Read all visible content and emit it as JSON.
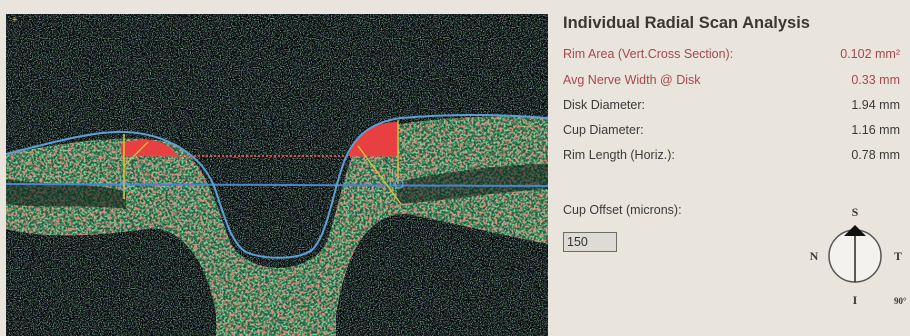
{
  "title": "Individual Radial Scan Analysis",
  "measurements": [
    {
      "label": "Rim  Area (Vert.Cross Section):",
      "value": "0.102 mm²",
      "highlight": true
    },
    {
      "label": "Avg Nerve Width @ Disk",
      "value": "0.33 mm",
      "highlight": true
    },
    {
      "label": "Disk Diameter:",
      "value": "1.94 mm",
      "highlight": false
    },
    {
      "label": "Cup Diameter:",
      "value": "1.16 mm",
      "highlight": false
    },
    {
      "label": "Rim Length (Horiz.):",
      "value": "0.78 mm",
      "highlight": false
    }
  ],
  "cup_offset": {
    "label": "Cup Offset (microns):",
    "value": "150"
  },
  "orientation": {
    "north": "S",
    "south": "I",
    "east": "T",
    "west": "N",
    "angle": "90°"
  },
  "colors": {
    "highlight_text": "#a8474c",
    "normal_text": "#3a3a3a",
    "rim_fill": "#e84040",
    "contour": "#5ba0d6",
    "diameter_line": "#4a84cf"
  }
}
